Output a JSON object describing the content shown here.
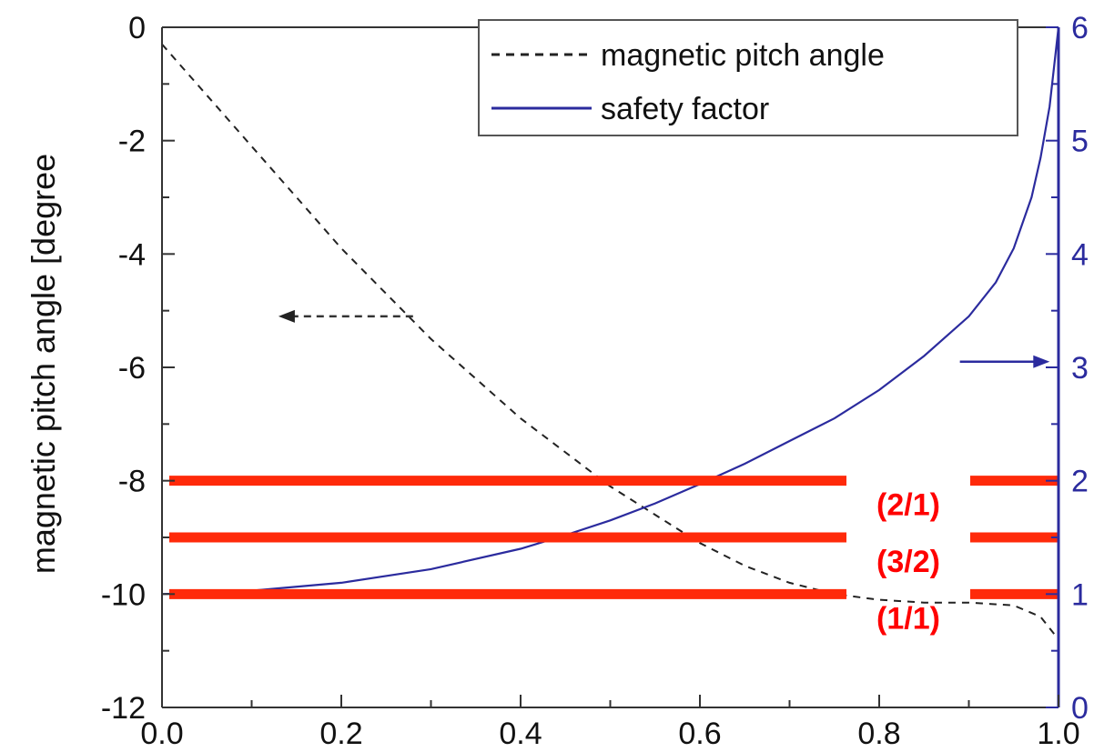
{
  "chart_data": {
    "type": "line",
    "title": "",
    "xlabel": "",
    "ylabel": "magnetic pitch angle [degree",
    "y2label": "",
    "xlim": [
      0.0,
      1.0
    ],
    "ylim": [
      -12,
      0
    ],
    "y2lim": [
      0,
      6
    ],
    "x_ticks": [
      "0.0",
      "0.2",
      "0.4",
      "0.6",
      "0.8",
      "1.0"
    ],
    "y_ticks": [
      "0",
      "-2",
      "-4",
      "-6",
      "-8",
      "-10",
      "-12"
    ],
    "y2_ticks": [
      "0",
      "1",
      "2",
      "3",
      "4",
      "5",
      "6"
    ],
    "legend_position": "top-right",
    "series": [
      {
        "name": "magnetic pitch angle",
        "axis": "left",
        "style": "dashed",
        "color": "#222222",
        "x": [
          0.0,
          0.05,
          0.1,
          0.15,
          0.2,
          0.25,
          0.3,
          0.35,
          0.4,
          0.45,
          0.5,
          0.55,
          0.6,
          0.65,
          0.7,
          0.75,
          0.8,
          0.85,
          0.9,
          0.95,
          0.98,
          1.0
        ],
        "values": [
          -0.3,
          -1.2,
          -2.1,
          -3.0,
          -3.9,
          -4.7,
          -5.5,
          -6.2,
          -6.9,
          -7.5,
          -8.1,
          -8.6,
          -9.1,
          -9.5,
          -9.8,
          -10.0,
          -10.1,
          -10.15,
          -10.15,
          -10.2,
          -10.4,
          -10.8
        ]
      },
      {
        "name": "safety factor",
        "axis": "right",
        "style": "solid",
        "color": "#2b2b9e",
        "x": [
          0.0,
          0.1,
          0.2,
          0.3,
          0.4,
          0.45,
          0.5,
          0.55,
          0.6,
          0.65,
          0.7,
          0.75,
          0.8,
          0.85,
          0.9,
          0.93,
          0.95,
          0.97,
          0.98,
          0.99,
          1.0
        ],
        "values": [
          1.0,
          1.03,
          1.1,
          1.22,
          1.4,
          1.52,
          1.65,
          1.8,
          1.97,
          2.15,
          2.35,
          2.55,
          2.8,
          3.1,
          3.45,
          3.75,
          4.05,
          4.5,
          4.85,
          5.3,
          6.0
        ]
      }
    ],
    "reference_lines": [
      {
        "label": "(2/1)",
        "y2": 2
      },
      {
        "label": "(3/2)",
        "y2": 1.5
      },
      {
        "label": "(1/1)",
        "y2": 1
      }
    ],
    "annotations": [
      {
        "type": "arrow",
        "points_to": "left-axis",
        "x_start": 0.28,
        "x_end": 0.14,
        "y": -5.1
      },
      {
        "type": "arrow",
        "points_to": "right-axis",
        "x_start": 0.89,
        "x_end": 0.98,
        "y2": 3.05
      }
    ],
    "colors": {
      "frame": "#333333",
      "right_axis": "#2b2b9e",
      "reference_lines": "#ff2a0a",
      "mode_labels": "#ff0000"
    }
  }
}
